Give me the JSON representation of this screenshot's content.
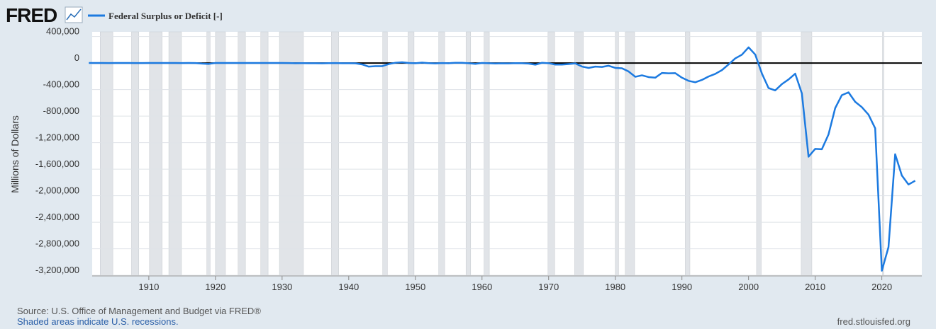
{
  "logo": "FRED",
  "chart_data": {
    "type": "line",
    "series": [
      {
        "name": "Federal Surplus or Deficit [-]",
        "color": "#1c7ae0",
        "x": [
          1901,
          1902,
          1903,
          1904,
          1905,
          1906,
          1907,
          1908,
          1909,
          1910,
          1911,
          1912,
          1913,
          1914,
          1915,
          1916,
          1917,
          1918,
          1919,
          1920,
          1921,
          1922,
          1923,
          1924,
          1925,
          1926,
          1927,
          1928,
          1929,
          1930,
          1931,
          1932,
          1933,
          1934,
          1935,
          1936,
          1937,
          1938,
          1939,
          1940,
          1941,
          1942,
          1943,
          1944,
          1945,
          1946,
          1947,
          1948,
          1949,
          1950,
          1951,
          1952,
          1953,
          1954,
          1955,
          1956,
          1957,
          1958,
          1959,
          1960,
          1961,
          1962,
          1963,
          1964,
          1965,
          1966,
          1967,
          1968,
          1969,
          1970,
          1971,
          1972,
          1973,
          1974,
          1975,
          1976,
          1977,
          1978,
          1979,
          1980,
          1981,
          1982,
          1983,
          1984,
          1985,
          1986,
          1987,
          1988,
          1989,
          1990,
          1991,
          1992,
          1993,
          1994,
          1995,
          1996,
          1997,
          1998,
          1999,
          2000,
          2001,
          2002,
          2003,
          2004,
          2005,
          2006,
          2007,
          2008,
          2009,
          2010,
          2011,
          2012,
          2013,
          2014,
          2015,
          2016,
          2017,
          2018,
          2019,
          2020,
          2021,
          2022,
          2023,
          2024,
          2025
        ],
        "values": [
          63,
          77,
          45,
          -43,
          -23,
          25,
          87,
          -57,
          -89,
          -18,
          11,
          3,
          0,
          0,
          -63,
          48,
          -853,
          -9032,
          -13363,
          291,
          509,
          736,
          713,
          963,
          717,
          865,
          1155,
          939,
          734,
          738,
          -462,
          -2735,
          -2602,
          -3586,
          -2803,
          -4304,
          -2193,
          -89,
          -2846,
          -2920,
          -4941,
          -20503,
          -54554,
          -47557,
          -47553,
          -15936,
          4018,
          11796,
          580,
          -3119,
          6102,
          -1519,
          -6493,
          -1154,
          -2993,
          3947,
          3412,
          -2769,
          -12849,
          301,
          -3335,
          -7146,
          -4756,
          -5915,
          -1411,
          -3698,
          -8643,
          -25161,
          3242,
          -2842,
          -23033,
          -23373,
          -14908,
          -6135,
          -53242,
          -73732,
          -53659,
          -59185,
          -40726,
          -73830,
          -78968,
          -127977,
          -207802,
          -185367,
          -212308,
          -221227,
          -149730,
          -155178,
          -152639,
          -221036,
          -269238,
          -290321,
          -255051,
          -203186,
          -163952,
          -107431,
          -21884,
          69270,
          125610,
          236241,
          128236,
          -157758,
          -377585,
          -412727,
          -318346,
          -248181,
          -160701,
          -458553,
          -1412688,
          -1294373,
          -1299599,
          -1076573,
          -679775,
          -484602,
          -441960,
          -584651,
          -665446,
          -779137,
          -983598,
          -3131917,
          -2775306,
          -1375853,
          -1695000,
          -1832000,
          -1775000
        ]
      }
    ],
    "y_label": "Millions of Dollars",
    "xlim": [
      1901.5,
      2026
    ],
    "xticks": [
      1910,
      1920,
      1930,
      1940,
      1950,
      1960,
      1970,
      1980,
      1990,
      2000,
      2010,
      2020
    ],
    "ylim": [
      -3210000,
      470000
    ],
    "yticks": [
      {
        "value": 400000,
        "label": "400,000"
      },
      0,
      {
        "value": -400000,
        "label": "-400,000"
      },
      {
        "value": -800000,
        "label": "-800,000"
      },
      {
        "value": -1200000,
        "label": "-1,200,000"
      },
      {
        "value": -1600000,
        "label": "-1,600,000"
      },
      {
        "value": -2000000,
        "label": "-2,000,000"
      },
      {
        "value": -2400000,
        "label": "-2,400,000"
      },
      {
        "value": -2800000,
        "label": "-2,800,000"
      },
      {
        "value": -3200000,
        "label": "-3,200,000"
      }
    ],
    "grid": true,
    "recessions": [
      [
        1902.7,
        1904.6
      ],
      [
        1907.4,
        1908.5
      ],
      [
        1910.1,
        1912.0
      ],
      [
        1913.0,
        1914.9
      ],
      [
        1918.7,
        1919.2
      ],
      [
        1920.0,
        1921.5
      ],
      [
        1923.4,
        1924.5
      ],
      [
        1926.8,
        1927.9
      ],
      [
        1929.6,
        1933.2
      ],
      [
        1937.4,
        1938.5
      ],
      [
        1945.1,
        1945.8
      ],
      [
        1948.9,
        1949.8
      ],
      [
        1953.5,
        1954.4
      ],
      [
        1957.6,
        1958.3
      ],
      [
        1960.3,
        1961.1
      ],
      [
        1969.9,
        1970.9
      ],
      [
        1973.9,
        1975.2
      ],
      [
        1980.0,
        1980.5
      ],
      [
        1981.5,
        1982.9
      ],
      [
        1990.5,
        1991.2
      ],
      [
        2001.2,
        2001.9
      ],
      [
        2007.9,
        2009.5
      ],
      [
        2020.1,
        2020.3
      ]
    ],
    "recession_color": "#e1e4e8",
    "source": "Source: U.S. Office of Management and Budget via FRED®",
    "recession_note": "Shaded areas indicate U.S. recessions.",
    "site": "fred.stlouisfed.org"
  }
}
